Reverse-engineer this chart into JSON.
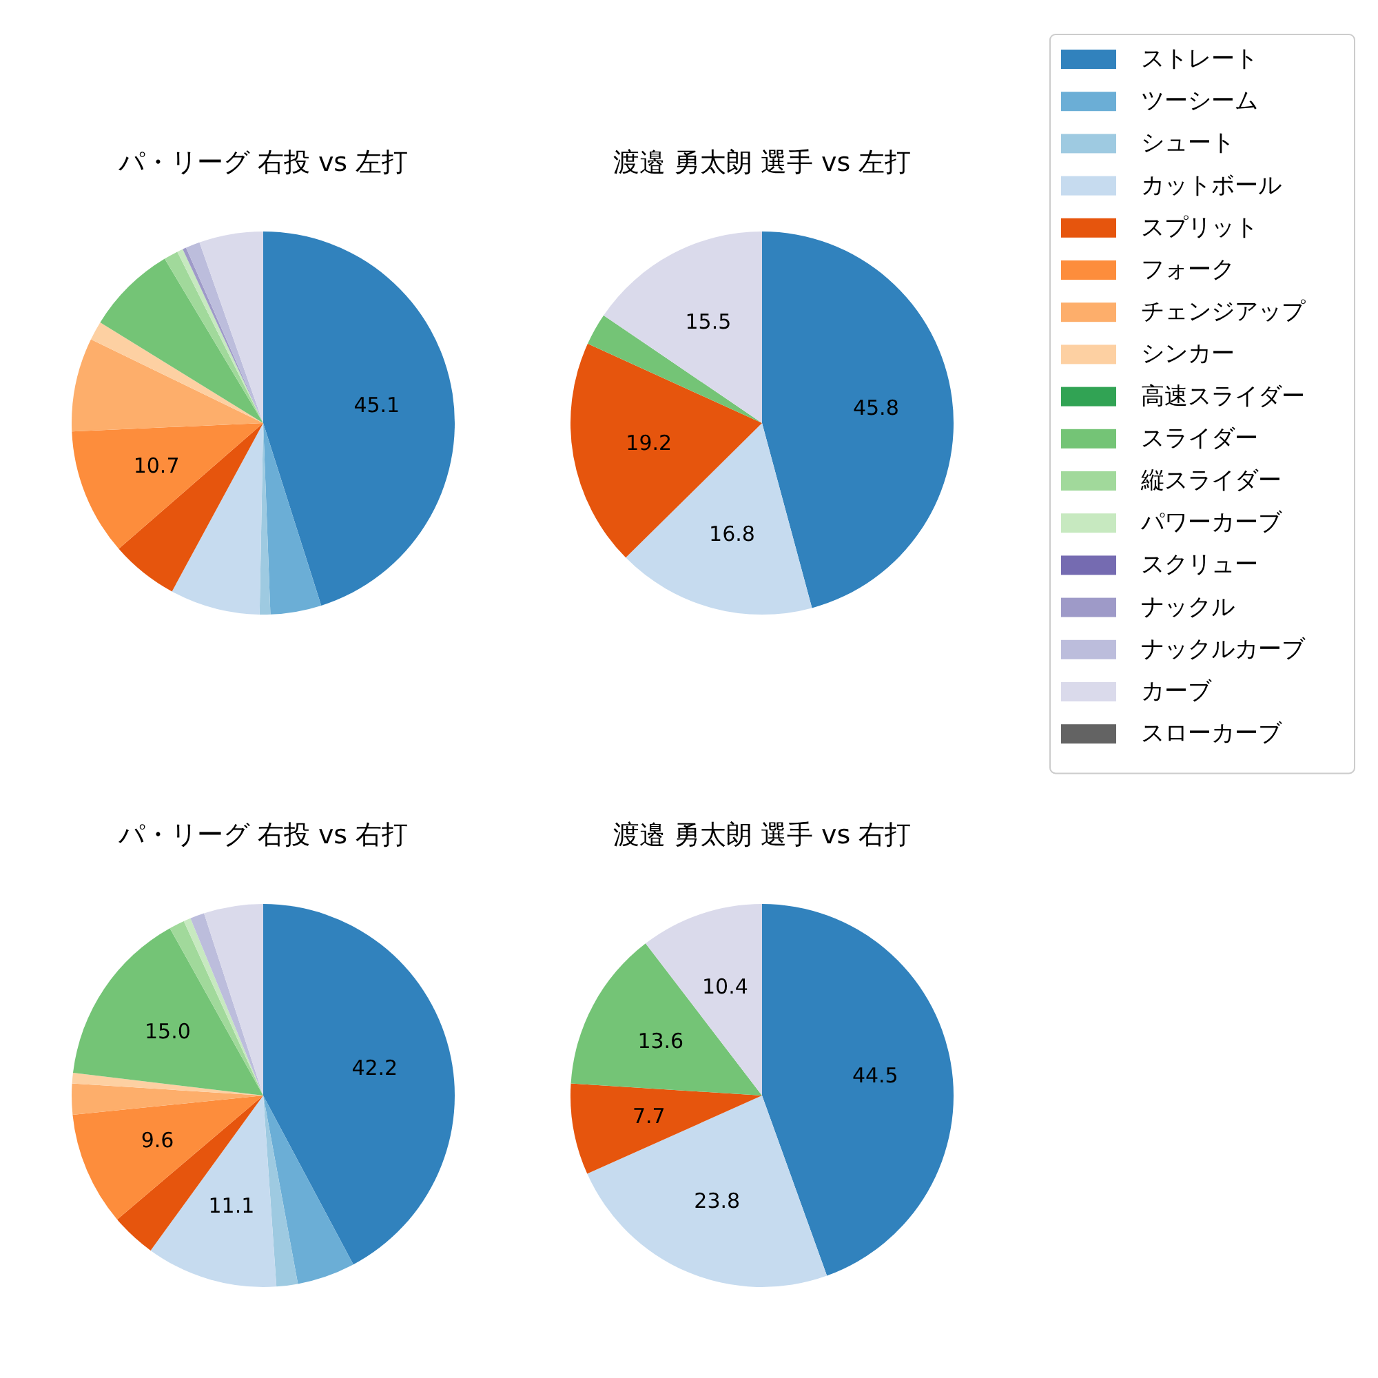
{
  "chart_data": [
    {
      "type": "pie",
      "title": "パ・リーグ 右投 vs 左打",
      "legend": "right",
      "categories": [
        "ストレート",
        "ツーシーム",
        "シュート",
        "カットボール",
        "スプリット",
        "フォーク",
        "チェンジアップ",
        "シンカー",
        "高速スライダー",
        "スライダー",
        "縦スライダー",
        "パワーカーブ",
        "スクリュー",
        "ナックル",
        "ナックルカーブ",
        "カーブ",
        "スローカーブ"
      ],
      "values": [
        45.1,
        4.3,
        0.9,
        7.6,
        5.7,
        10.7,
        7.9,
        1.6,
        0,
        7.6,
        1.2,
        0.5,
        0,
        0.3,
        1.2,
        5.4,
        0
      ],
      "value_labels": [
        "45.1",
        null,
        null,
        null,
        null,
        "10.7",
        null,
        null,
        null,
        null,
        null,
        null,
        null,
        null,
        null,
        null,
        null
      ],
      "colors": [
        "#3182bd",
        "#6baed6",
        "#9ecae1",
        "#c6dbef",
        "#e6550d",
        "#fd8d3c",
        "#fdae6b",
        "#fdd0a2",
        "#31a354",
        "#74c476",
        "#a1d99b",
        "#c7e9c0",
        "#756bb1",
        "#9e9ac8",
        "#bcbddc",
        "#dadaeb",
        "#636363"
      ]
    },
    {
      "type": "pie",
      "title": "渡邉 勇太朗 選手 vs 左打",
      "categories": [
        null,
        null,
        null,
        null,
        null
      ],
      "values": [
        45.8,
        16.8,
        19.2,
        2.7,
        15.5
      ],
      "value_labels": [
        "45.8",
        "16.8",
        "19.2",
        null,
        "15.5"
      ],
      "colors": [
        "#3182bd",
        "#c6dbef",
        "#e6550d",
        "#74c476",
        "#dadaeb"
      ]
    },
    {
      "type": "pie",
      "title": "パ・リーグ 右投 vs 右打",
      "categories": [
        null,
        null,
        null,
        null,
        null,
        null,
        null,
        null,
        null,
        null,
        null,
        null,
        null
      ],
      "values": [
        42.2,
        4.9,
        1.8,
        11.1,
        3.8,
        9.6,
        2.6,
        0.9,
        15.0,
        1.3,
        0.6,
        1.2,
        5.0
      ],
      "value_labels": [
        "42.2",
        null,
        null,
        "11.1",
        null,
        "9.6",
        null,
        null,
        "15.0",
        null,
        null,
        null,
        null
      ],
      "colors": [
        "#3182bd",
        "#6baed6",
        "#9ecae1",
        "#c6dbef",
        "#e6550d",
        "#fd8d3c",
        "#fdae6b",
        "#fdd0a2",
        "#74c476",
        "#a1d99b",
        "#c7e9c0",
        "#bcbddc",
        "#dadaeb"
      ]
    },
    {
      "type": "pie",
      "title": "渡邉 勇太朗 選手 vs 右打",
      "categories": [
        null,
        null,
        null,
        null,
        null
      ],
      "values": [
        44.5,
        23.8,
        7.7,
        13.6,
        10.4
      ],
      "value_labels": [
        "44.5",
        "23.8",
        "7.7",
        "13.6",
        "10.4"
      ],
      "colors": [
        "#3182bd",
        "#c6dbef",
        "#e6550d",
        "#74c476",
        "#dadaeb"
      ]
    }
  ]
}
